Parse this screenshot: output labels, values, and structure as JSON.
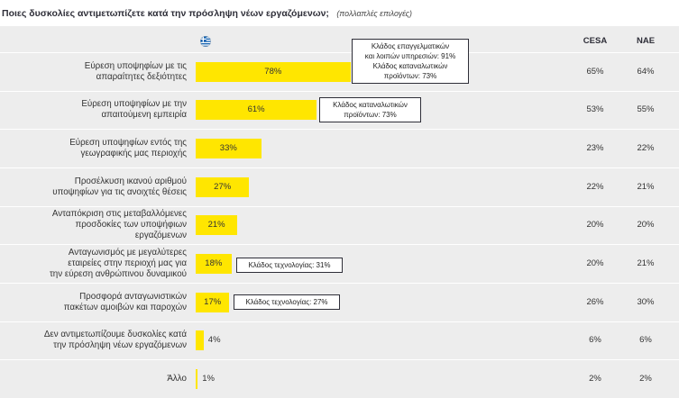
{
  "chart_data": {
    "type": "bar",
    "orientation": "horizontal",
    "title": "Ποιες δυσκολίες αντιμετωπίζετε κατά την πρόσληψη νέων εργαζόμενων;",
    "subtitle": "(πολλαπλές επιλογές)",
    "series_icon": "greece-flag-icon",
    "categories": [
      "Εύρεση υποψηφίων με τις\nαπαραίτητες δεξιότητες",
      "Εύρεση υποψηφίων με την\nαπαιτούμενη εμπειρία",
      "Εύρεση υποψηφίων εντός της\nγεωγραφικής μας περιοχής",
      "Προσέλκυση ικανού αριθμού\nυποψηφίων για τις ανοιχτές θέσεις",
      "Ανταπόκριση στις μεταβαλλόμενες\nπροσδοκίες των υποψήφιων\nεργαζόμενων",
      "Ανταγωνισμός με μεγαλύτερες\nεταιρείες στην περιοχή μας για\nτην εύρεση ανθρώπινου δυναμικού",
      "Προσφορά ανταγωνιστικών\nπακέτων αμοιβών και παροχών",
      "Δεν αντιμετωπίζουμε δυσκολίες κατά\nτην πρόσληψη νέων εργαζόμενων",
      "Άλλο"
    ],
    "values": [
      78,
      61,
      33,
      27,
      21,
      18,
      17,
      4,
      1
    ],
    "value_labels": [
      "78%",
      "61%",
      "33%",
      "27%",
      "21%",
      "18%",
      "17%",
      "4%",
      "1%"
    ],
    "xlim": [
      0,
      100
    ],
    "grid": false,
    "comparison_columns": [
      {
        "name": "CESA",
        "values": [
          "65%",
          "53%",
          "23%",
          "22%",
          "20%",
          "20%",
          "26%",
          "6%",
          "2%"
        ]
      },
      {
        "name": "ΝΑΕ",
        "values": [
          "64%",
          "55%",
          "22%",
          "21%",
          "20%",
          "21%",
          "30%",
          "6%",
          "2%"
        ]
      }
    ],
    "annotations": [
      {
        "category_index": 0,
        "text": "Κλάδος επαγγελματικών\nκαι λοιπών υπηρεσιών: 91%\nΚλάδος καταναλωτικών\nπροϊόντων: 73%"
      },
      {
        "category_index": 1,
        "text": "Κλάδος καταναλωτικών\nπροϊόντων: 73%"
      },
      {
        "category_index": 5,
        "text": "Κλάδος τεχνολογίας: 31%"
      },
      {
        "category_index": 6,
        "text": "Κλάδος τεχνολογίας: 27%"
      }
    ]
  },
  "colors": {
    "bar": "#ffe600",
    "table_background": "#ededed",
    "separator": "#ffffff",
    "text": "#333333",
    "title": "#2e2e38"
  }
}
